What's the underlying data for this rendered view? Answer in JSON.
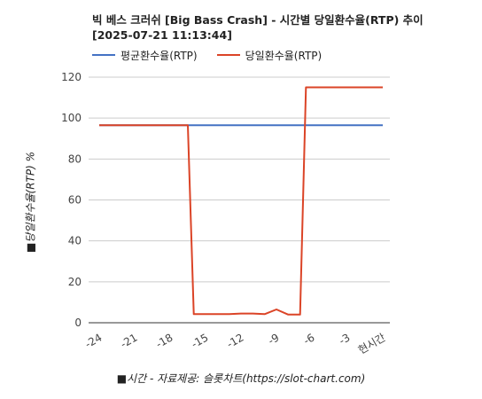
{
  "chart_data": {
    "type": "line",
    "title_line1": "빅 베스 크러쉬 [Big Bass Crash] - 시간별 당일환수율(RTP) 추이",
    "title_line2": "[2025-07-21 11:13:44]",
    "xlabel": "■시간 - 자료제공: 슬롯차트(https://slot-chart.com)",
    "ylabel": "■당일환수율(RTP) %",
    "ylim": [
      0,
      120
    ],
    "yticks": [
      "0",
      "20",
      "40",
      "60",
      "80",
      "100",
      "120"
    ],
    "xlim": [
      -24,
      0
    ],
    "xticks": [
      {
        "x": -24,
        "label": "-24"
      },
      {
        "x": -21,
        "label": "-21"
      },
      {
        "x": -18,
        "label": "-18"
      },
      {
        "x": -15,
        "label": "-15"
      },
      {
        "x": -12,
        "label": "-12"
      },
      {
        "x": -9,
        "label": "-9"
      },
      {
        "x": -6,
        "label": "-6"
      },
      {
        "x": -3,
        "label": "-3"
      },
      {
        "x": 0,
        "label": "현시간"
      }
    ],
    "grid": true,
    "legend_position": "top-left",
    "series": [
      {
        "name": "평균환수율(RTP)",
        "color": "#4472c4",
        "points": [
          [
            -24,
            96.5
          ],
          [
            0,
            96.5
          ]
        ]
      },
      {
        "name": "당일환수율(RTP)",
        "color": "#db4427",
        "points": [
          [
            -24,
            96.5
          ],
          [
            -16.5,
            96.5
          ],
          [
            -16,
            4.2
          ],
          [
            -15,
            4.2
          ],
          [
            -14,
            4.2
          ],
          [
            -13,
            4.2
          ],
          [
            -12,
            4.5
          ],
          [
            -11,
            4.5
          ],
          [
            -10,
            4.2
          ],
          [
            -9,
            6.5
          ],
          [
            -8,
            4.0
          ],
          [
            -7,
            4.0
          ],
          [
            -6.5,
            115
          ],
          [
            0,
            115
          ]
        ]
      }
    ]
  }
}
